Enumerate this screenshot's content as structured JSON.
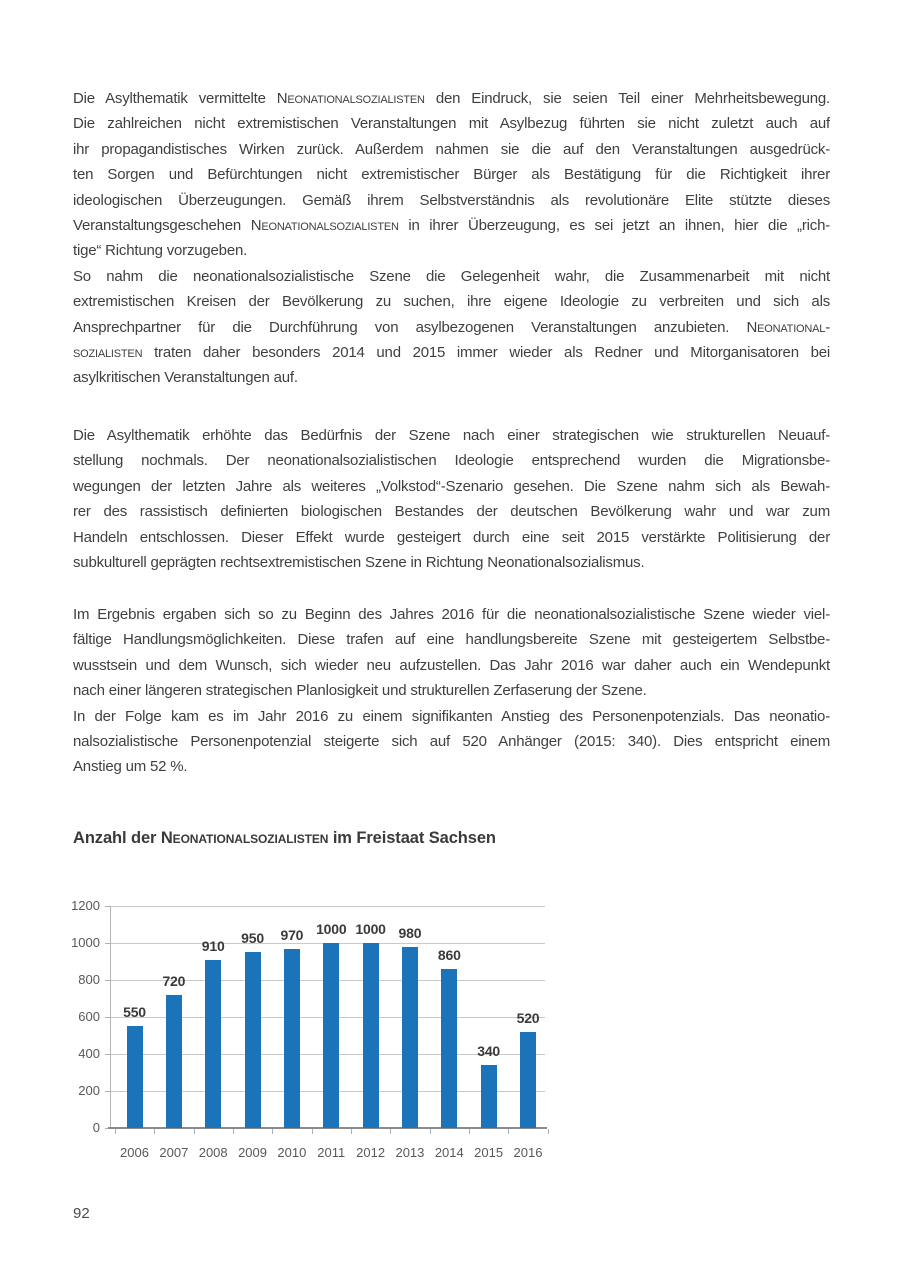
{
  "page": {
    "page_number": "92",
    "heading": {
      "segments": [
        {
          "t": "Anzahl der "
        },
        {
          "t": "Neonationalsozialisten",
          "sc": true
        },
        {
          "t": " im Freistaat Sachsen"
        }
      ]
    },
    "paragraphs": [
      {
        "lines": [
          {
            "seg": [
              {
                "t": "Die Asylthematik vermittelte "
              },
              {
                "t": "Neonationalsozialisten",
                "sc": true
              },
              {
                "t": " den Eindruck, sie seien Teil einer Mehrheitsbewegung."
              }
            ]
          },
          {
            "seg": [
              {
                "t": "Die zahlreichen nicht extremistischen Veranstaltungen mit Asylbezug führten sie nicht zuletzt auch auf"
              }
            ]
          },
          {
            "seg": [
              {
                "t": "ihr propagandistisches Wirken zurück. Außerdem nahmen sie die auf den Veranstaltungen ausgedrück-"
              }
            ]
          },
          {
            "seg": [
              {
                "t": "ten Sorgen und Befürchtungen nicht extremistischer Bürger als Bestätigung für die Richtigkeit ihrer"
              }
            ]
          },
          {
            "seg": [
              {
                "t": "ideologischen Überzeugungen. Gemäß ihrem Selbstverständnis als revolutionäre Elite stützte dieses"
              }
            ]
          },
          {
            "seg": [
              {
                "t": "Veranstaltungsgeschehen "
              },
              {
                "t": "Neonationalsozialisten",
                "sc": true
              },
              {
                "t": " in ihrer Überzeugung, es sei jetzt an ihnen, hier die „rich-"
              }
            ]
          },
          {
            "seg": [
              {
                "t": "tige“ Richtung vorzugeben."
              }
            ],
            "j": false
          },
          {
            "seg": [
              {
                "t": "So nahm die neonationalsozialistische Szene die Gelegenheit wahr, die Zusammenarbeit mit nicht"
              }
            ]
          },
          {
            "seg": [
              {
                "t": "extremistischen Kreisen der Bevölkerung zu suchen, ihre eigene Ideologie zu verbreiten und sich als"
              }
            ]
          },
          {
            "seg": [
              {
                "t": "Ansprechpartner für die Durchführung von asylbezogenen Veranstaltungen anzubieten. "
              },
              {
                "t": "Neonational-",
                "sc": true
              }
            ]
          },
          {
            "seg": [
              {
                "t": "sozialisten",
                "sc": true
              },
              {
                "t": " traten daher besonders 2014 und 2015 immer wieder als Redner und Mitorganisatoren bei"
              }
            ]
          },
          {
            "seg": [
              {
                "t": "asylkritischen Veranstaltungen auf."
              }
            ],
            "j": false
          }
        ]
      },
      {
        "lines": [
          {
            "seg": [
              {
                "t": "Die Asylthematik erhöhte das Bedürfnis der Szene nach einer strategischen wie strukturellen Neuauf-"
              }
            ]
          },
          {
            "seg": [
              {
                "t": "stellung nochmals. Der neonationalsozialistischen Ideologie entsprechend wurden die Migrationsbe-"
              }
            ]
          },
          {
            "seg": [
              {
                "t": "wegungen der letzten Jahre als weiteres „Volkstod“-Szenario gesehen. Die Szene nahm sich als Bewah-"
              }
            ]
          },
          {
            "seg": [
              {
                "t": "rer des rassistisch definierten biologischen Bestandes der deutschen Bevölkerung wahr und war zum"
              }
            ]
          },
          {
            "seg": [
              {
                "t": "Handeln entschlossen. Dieser Effekt wurde gesteigert durch eine seit 2015 verstärkte Politisierung der"
              }
            ]
          },
          {
            "seg": [
              {
                "t": "subkulturell geprägten rechtsextremistischen Szene in Richtung Neonationalsozialismus."
              }
            ],
            "j": false
          }
        ]
      },
      {
        "lines": [
          {
            "seg": [
              {
                "t": "Im Ergebnis ergaben sich so zu Beginn des Jahres 2016 für die neonationalsozialistische Szene wieder viel-"
              }
            ]
          },
          {
            "seg": [
              {
                "t": "fältige Handlungsmöglichkeiten. Diese trafen auf eine handlungsbereite Szene mit gesteigertem Selbstbe-"
              }
            ]
          },
          {
            "seg": [
              {
                "t": "wusstsein und dem Wunsch, sich wieder neu aufzustellen. Das Jahr 2016 war daher auch ein Wendepunkt"
              }
            ]
          },
          {
            "seg": [
              {
                "t": "nach einer längeren strategischen Planlosigkeit und strukturellen Zerfaserung der Szene."
              }
            ],
            "j": false
          },
          {
            "seg": [
              {
                "t": "In der Folge kam es im Jahr 2016 zu einem signifikanten Anstieg des Personenpotenzials. Das neonatio-"
              }
            ]
          },
          {
            "seg": [
              {
                "t": "nalsozialistische Personenpotenzial steigerte sich auf 520 Anhänger (2015: 340). Dies entspricht einem"
              }
            ]
          },
          {
            "seg": [
              {
                "t": "Anstieg um 52 %."
              }
            ],
            "j": false
          }
        ]
      }
    ]
  },
  "chart_data": {
    "type": "bar",
    "title": "Anzahl der Neonationalsozialisten im Freistaat Sachsen",
    "categories": [
      "2006",
      "2007",
      "2008",
      "2009",
      "2010",
      "2011",
      "2012",
      "2013",
      "2014",
      "2015",
      "2016"
    ],
    "values": [
      550,
      720,
      910,
      950,
      970,
      1000,
      1000,
      980,
      860,
      340,
      520
    ],
    "xlabel": "",
    "ylabel": "",
    "ylim": [
      0,
      1200
    ],
    "yticks": [
      0,
      200,
      400,
      600,
      800,
      1000,
      1200
    ],
    "grid": true,
    "legend": false,
    "value_labels": true,
    "bar_color": "#1b74ba",
    "label_color": "#595959",
    "value_label_color": "#3a3a39"
  }
}
